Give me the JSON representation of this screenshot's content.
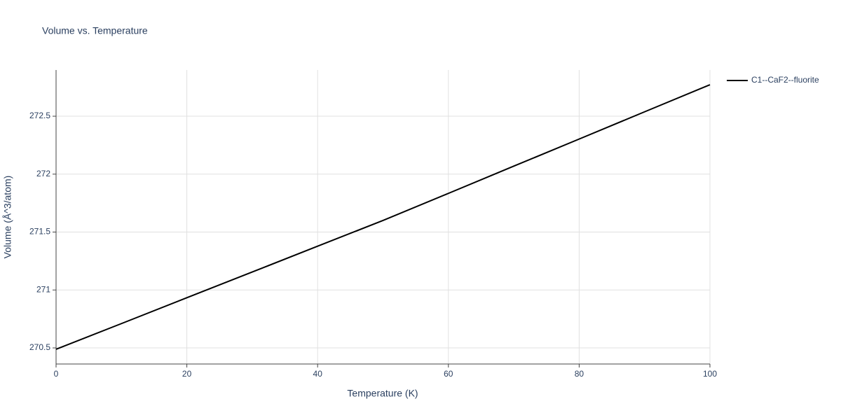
{
  "chart_data": {
    "type": "line",
    "title": "Volume vs. Temperature",
    "xlabel": "Temperature (K)",
    "ylabel": "Volume (Å^3/atom)",
    "x": [
      0,
      10,
      20,
      30,
      40,
      50,
      60,
      70,
      80,
      90,
      100
    ],
    "series": [
      {
        "name": "C1--CaF2--fluorite",
        "color": "#000000",
        "values": [
          270.488,
          270.71,
          270.933,
          271.155,
          271.378,
          271.6,
          271.834,
          272.069,
          272.303,
          272.538,
          272.772
        ]
      }
    ],
    "xlim": [
      0,
      100
    ],
    "xticks": [
      0,
      20,
      40,
      60,
      80,
      100
    ],
    "ylim": [
      270.361,
      272.899
    ],
    "yticks": [
      270.5,
      271,
      271.5,
      272,
      272.5
    ],
    "grid": true,
    "legend": "right"
  }
}
